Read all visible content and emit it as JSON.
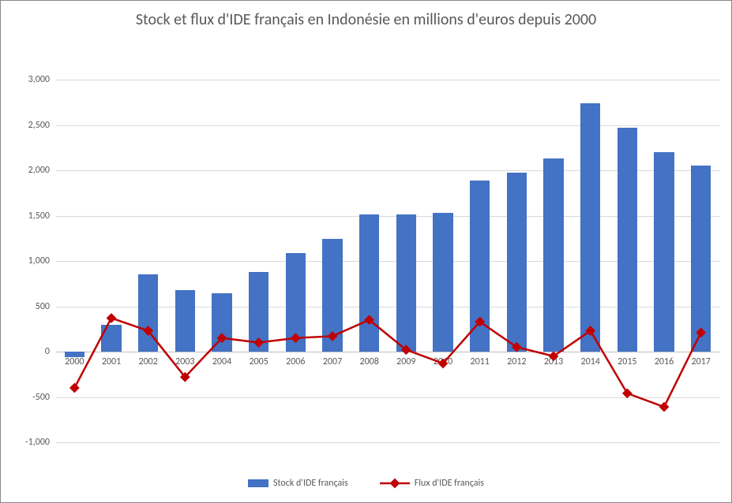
{
  "chart": {
    "type": "bar+line",
    "title": "Stock et flux d'IDE français en Indonésie en millions d'euros depuis 2000",
    "title_fontsize": 20,
    "title_color": "#595959",
    "background_color": "#ffffff",
    "border_color": "#888888",
    "grid_color": "#d9d9d9",
    "zero_line_color": "#bfbfbf",
    "axis_label_color": "#595959",
    "axis_label_fontsize": 12,
    "ylim": [
      -1000,
      3000
    ],
    "ytick_step": 500,
    "yticks": [
      -1000,
      -500,
      0,
      500,
      1000,
      1500,
      2000,
      2500,
      3000
    ],
    "ytick_labels": [
      "-1,000",
      "-500",
      "0",
      "500",
      "1,000",
      "1,500",
      "2,000",
      "2,500",
      "3,000"
    ],
    "categories": [
      "2000",
      "2001",
      "2002",
      "2003",
      "2004",
      "2005",
      "2006",
      "2007",
      "2008",
      "2009",
      "2010",
      "2011",
      "2012",
      "2013",
      "2014",
      "2015",
      "2016",
      "2017"
    ],
    "bar_series": {
      "name": "Stock d'IDE français",
      "color": "#4472c4",
      "bar_width": 0.55,
      "values": [
        -60,
        300,
        850,
        680,
        640,
        880,
        1090,
        1240,
        1510,
        1510,
        1530,
        1890,
        1970,
        2130,
        2740,
        2470,
        2200,
        2050
      ]
    },
    "line_series": {
      "name": "Flux d'IDE français",
      "color": "#c00000",
      "line_width": 2.5,
      "marker": "diamond",
      "marker_size": 9,
      "values": [
        -400,
        370,
        230,
        -280,
        150,
        100,
        150,
        170,
        350,
        20,
        -130,
        330,
        50,
        -50,
        230,
        -460,
        -610,
        210
      ]
    },
    "legend": {
      "position": "bottom",
      "items": [
        {
          "label": "Stock d'IDE français",
          "type": "bar",
          "color": "#4472c4"
        },
        {
          "label": "Flux d'IDE français",
          "type": "line",
          "color": "#c00000"
        }
      ]
    }
  }
}
